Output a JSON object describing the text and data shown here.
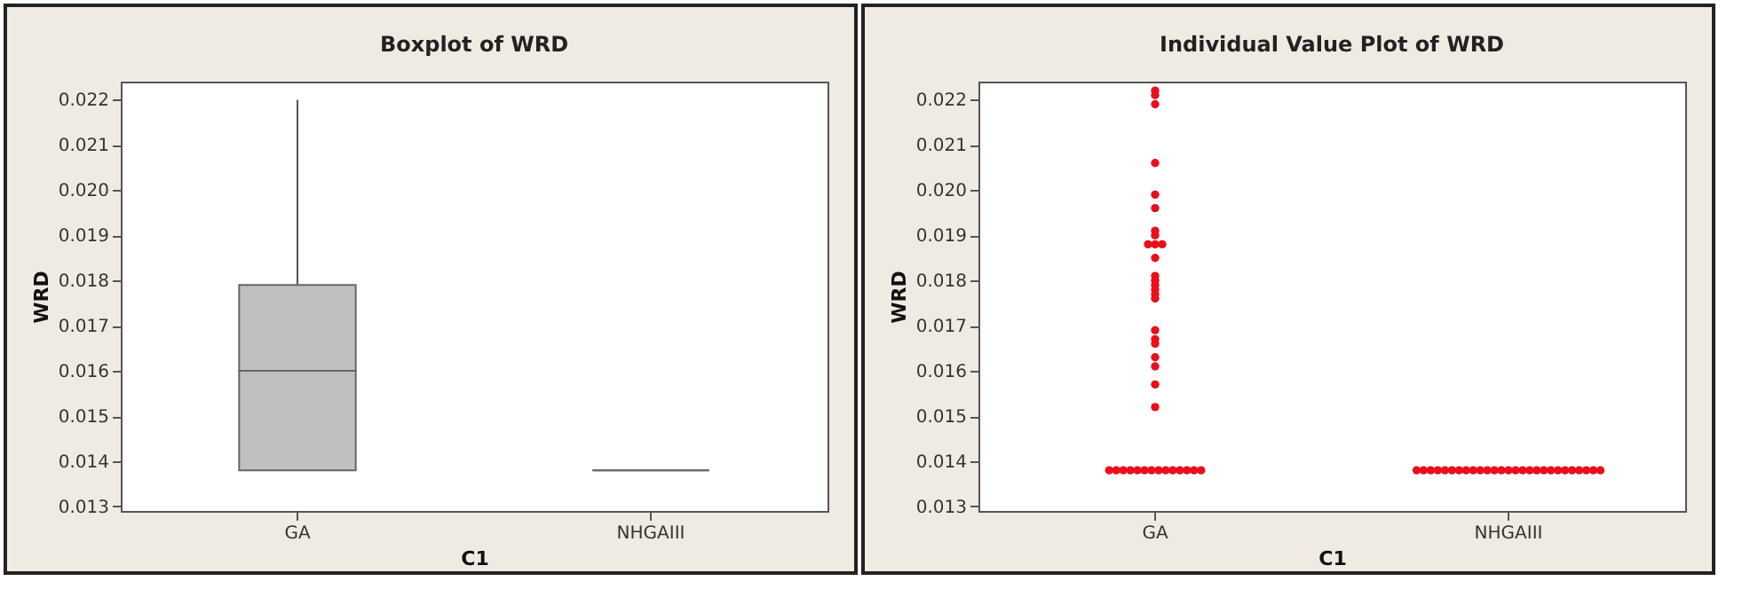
{
  "chart_data": [
    {
      "type": "box",
      "title": "Boxplot of WRD",
      "xlabel": "C1",
      "ylabel": "WRD",
      "categories": [
        "GA",
        "NHGAIII"
      ],
      "series": [
        {
          "colors": [
            "#c0c0c0",
            "#666666"
          ],
          "boxes": [
            {
              "low": 0.0138,
              "q1": 0.0138,
              "median": 0.016,
              "q3": 0.0179,
              "high": 0.022
            },
            {
              "low": 0.0138,
              "q1": 0.0138,
              "median": 0.0138,
              "q3": 0.0138,
              "high": 0.0138
            }
          ]
        }
      ],
      "ylim": [
        0.0129,
        0.0224
      ],
      "yticks": [
        0.013,
        0.014,
        0.015,
        0.016,
        0.017,
        0.018,
        0.019,
        {
          "value": 0.02,
          "label": "0.020"
        },
        0.021,
        0.022
      ]
    },
    {
      "type": "scatter",
      "title": "Individual Value Plot of WRD",
      "xlabel": "C1",
      "ylabel": "WRD",
      "categories": [
        "GA",
        "NHGAIII"
      ],
      "marker": "circle",
      "series": [
        {
          "color": "#e8101a",
          "x": [
            "GA",
            "GA",
            "GA",
            "GA",
            "GA",
            "GA",
            "GA",
            "GA",
            "GA",
            "GA",
            "GA",
            "GA",
            "GA",
            "GA",
            "GA",
            "GA",
            "GA",
            "GA",
            "GA",
            "GA",
            "GA",
            "GA",
            "GA",
            "GA",
            "GA",
            "GA",
            "GA",
            "GA",
            "GA",
            "GA",
            "GA",
            "GA",
            "GA",
            "GA",
            "GA",
            "GA",
            "GA",
            "GA",
            "GA",
            "NHGAIII",
            "NHGAIII",
            "NHGAIII",
            "NHGAIII",
            "NHGAIII",
            "NHGAIII",
            "NHGAIII",
            "NHGAIII",
            "NHGAIII",
            "NHGAIII",
            "NHGAIII",
            "NHGAIII",
            "NHGAIII",
            "NHGAIII",
            "NHGAIII",
            "NHGAIII",
            "NHGAIII",
            "NHGAIII",
            "NHGAIII",
            "NHGAIII",
            "NHGAIII",
            "NHGAIII",
            "NHGAIII",
            "NHGAIII",
            "NHGAIII",
            "NHGAIII",
            "NHGAIII"
          ],
          "values": [
            0.0222,
            0.0221,
            0.0219,
            0.0206,
            0.0199,
            0.0196,
            0.0191,
            0.019,
            0.0188,
            0.0188,
            0.0188,
            0.0185,
            0.0181,
            0.018,
            0.0179,
            0.0178,
            0.0177,
            0.0176,
            0.0169,
            0.0167,
            0.0166,
            0.0163,
            0.0161,
            0.0157,
            0.0152,
            0.0138,
            0.0138,
            0.0138,
            0.0138,
            0.0138,
            0.0138,
            0.0138,
            0.0138,
            0.0138,
            0.0138,
            0.0138,
            0.0138,
            0.0138,
            0.0138,
            0.0138,
            0.0138,
            0.0138,
            0.0138,
            0.0138,
            0.0138,
            0.0138,
            0.0138,
            0.0138,
            0.0138,
            0.0138,
            0.0138,
            0.0138,
            0.0138,
            0.0138,
            0.0138,
            0.0138,
            0.0138,
            0.0138,
            0.0138,
            0.0138,
            0.0138,
            0.0138,
            0.0138,
            0.0138,
            0.0138,
            0.0138
          ]
        }
      ],
      "ylim": [
        0.0129,
        0.0224
      ],
      "yticks": [
        0.013,
        0.014,
        0.015,
        0.016,
        0.017,
        0.018,
        0.019,
        {
          "value": 0.02,
          "label": "0.020"
        },
        0.021,
        0.022
      ]
    }
  ]
}
